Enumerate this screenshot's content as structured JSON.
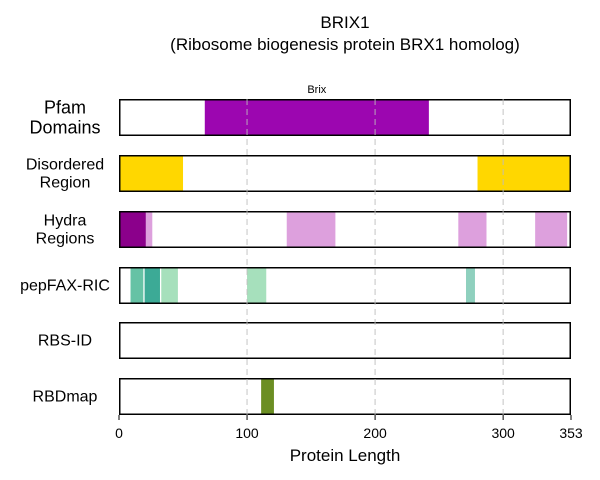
{
  "chart_data": {
    "type": "bar",
    "title": "BRIX1",
    "subtitle": "(Ribosome biogenesis protein BRX1 homolog)",
    "xlabel": "Protein Length",
    "xlim": [
      0,
      353
    ],
    "xticks": [
      0,
      100,
      200,
      300,
      353
    ],
    "grid": "vertical dashed at 100, 200, 300",
    "tracks": [
      {
        "label_lines": [
          "Pfam",
          "Domains"
        ],
        "segments": [
          {
            "start": 67,
            "end": 242,
            "color": "#9C06B0",
            "label": "Brix"
          }
        ]
      },
      {
        "label_lines": [
          "Disordered",
          "Region"
        ],
        "segments": [
          {
            "start": 0,
            "end": 50,
            "color": "#FFD700"
          },
          {
            "start": 280,
            "end": 353,
            "color": "#FFD700"
          }
        ]
      },
      {
        "label_lines": [
          "Hydra",
          "Regions"
        ],
        "segments": [
          {
            "start": 0,
            "end": 21,
            "color": "#8B008B"
          },
          {
            "start": 21,
            "end": 26,
            "color": "#DDA0DD"
          },
          {
            "start": 131,
            "end": 169,
            "color": "#DDA0DD"
          },
          {
            "start": 265,
            "end": 287,
            "color": "#DDA0DD"
          },
          {
            "start": 325,
            "end": 350,
            "color": "#DDA0DD"
          }
        ]
      },
      {
        "label_lines": [
          "pepFAX-RIC"
        ],
        "segments": [
          {
            "start": 9,
            "end": 19,
            "color": "#66C2A5"
          },
          {
            "start": 20,
            "end": 32,
            "color": "#3CAA96"
          },
          {
            "start": 33,
            "end": 46,
            "color": "#A6E0BC"
          },
          {
            "start": 100,
            "end": 115,
            "color": "#A6E0BC"
          },
          {
            "start": 271,
            "end": 278,
            "color": "#8FD0BE"
          }
        ]
      },
      {
        "label_lines": [
          "RBS-ID"
        ],
        "segments": []
      },
      {
        "label_lines": [
          "RBDmap"
        ],
        "segments": [
          {
            "start": 111,
            "end": 121,
            "color": "#6B8E23"
          }
        ]
      }
    ]
  }
}
